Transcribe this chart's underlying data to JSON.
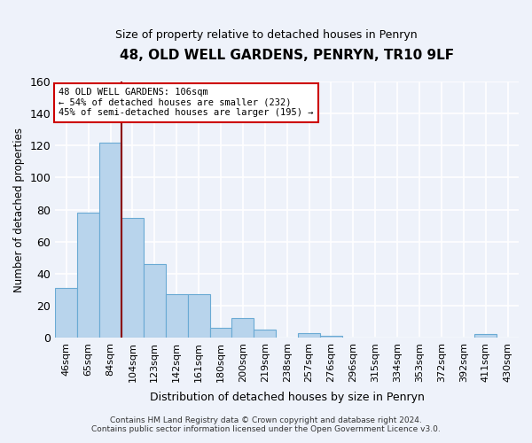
{
  "title": "48, OLD WELL GARDENS, PENRYN, TR10 9LF",
  "subtitle": "Size of property relative to detached houses in Penryn",
  "xlabel": "Distribution of detached houses by size in Penryn",
  "ylabel": "Number of detached properties",
  "bar_labels": [
    "46sqm",
    "65sqm",
    "84sqm",
    "104sqm",
    "123sqm",
    "142sqm",
    "161sqm",
    "180sqm",
    "200sqm",
    "219sqm",
    "238sqm",
    "257sqm",
    "276sqm",
    "296sqm",
    "315sqm",
    "334sqm",
    "353sqm",
    "372sqm",
    "392sqm",
    "411sqm",
    "430sqm"
  ],
  "bar_values": [
    31,
    78,
    122,
    75,
    46,
    27,
    27,
    6,
    12,
    5,
    0,
    3,
    1,
    0,
    0,
    0,
    0,
    0,
    0,
    2,
    0
  ],
  "bar_color": "#b8d4ec",
  "bar_edge_color": "#6aaad4",
  "ylim": [
    0,
    160
  ],
  "yticks": [
    0,
    20,
    40,
    60,
    80,
    100,
    120,
    140,
    160
  ],
  "vline_bar_idx": 3,
  "marker_label": "48 OLD WELL GARDENS: 106sqm",
  "annotation_line1": "← 54% of detached houses are smaller (232)",
  "annotation_line2": "45% of semi-detached houses are larger (195) →",
  "annotation_box_color": "#ffffff",
  "annotation_box_edge": "#cc0000",
  "vline_color": "#8b0000",
  "background_color": "#eef2fa",
  "grid_color": "#ffffff",
  "footer_line1": "Contains HM Land Registry data © Crown copyright and database right 2024.",
  "footer_line2": "Contains public sector information licensed under the Open Government Licence v3.0."
}
